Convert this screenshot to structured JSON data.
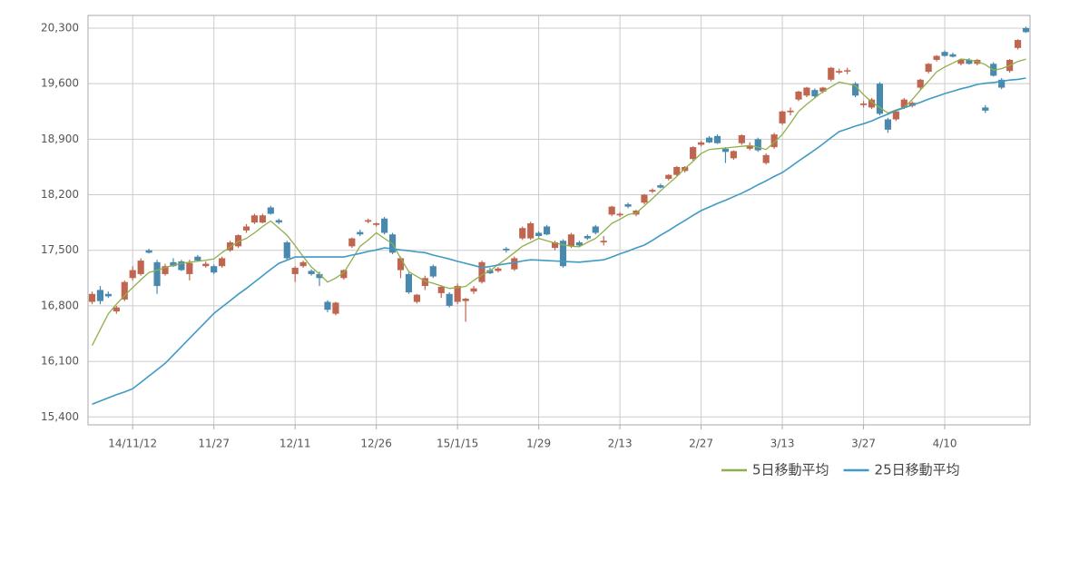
{
  "chart_data": {
    "type": "candlestick",
    "categories": [
      null,
      null,
      null,
      null,
      null,
      "14/11/12",
      null,
      null,
      null,
      null,
      null,
      null,
      null,
      null,
      null,
      "11/27",
      null,
      null,
      null,
      null,
      null,
      null,
      null,
      null,
      null,
      "12/11",
      null,
      null,
      null,
      null,
      null,
      null,
      null,
      null,
      null,
      "12/26",
      null,
      null,
      null,
      null,
      null,
      null,
      null,
      null,
      null,
      "15/1/15",
      null,
      null,
      null,
      null,
      null,
      null,
      null,
      null,
      null,
      "1/29",
      null,
      null,
      null,
      null,
      null,
      null,
      null,
      null,
      null,
      "2/13",
      null,
      null,
      null,
      null,
      null,
      null,
      null,
      null,
      null,
      "2/27",
      null,
      null,
      null,
      null,
      null,
      null,
      null,
      null,
      null,
      "3/13",
      null,
      null,
      null,
      null,
      null,
      null,
      null,
      null,
      null,
      "3/27",
      null,
      null,
      null,
      null,
      null,
      null,
      null,
      null,
      null,
      "4/10",
      null,
      null,
      null,
      null,
      null,
      null,
      null,
      null,
      null,
      null
    ],
    "ohlc": [
      [
        16850,
        16980,
        16820,
        16950
      ],
      [
        17000,
        17050,
        16820,
        16860
      ],
      [
        16950,
        16980,
        16900,
        16920
      ],
      [
        16730,
        16800,
        16700,
        16780
      ],
      [
        16880,
        17120,
        16860,
        17100
      ],
      [
        17150,
        17300,
        17120,
        17250
      ],
      [
        17200,
        17400,
        17180,
        17370
      ],
      [
        17500,
        17520,
        17460,
        17470
      ],
      [
        17350,
        17380,
        16950,
        17050
      ],
      [
        17200,
        17330,
        17180,
        17300
      ],
      [
        17350,
        17400,
        17290,
        17300
      ],
      [
        17360,
        17380,
        17240,
        17250
      ],
      [
        17200,
        17380,
        17120,
        17340
      ],
      [
        17420,
        17440,
        17360,
        17370
      ],
      [
        17300,
        17360,
        17280,
        17330
      ],
      [
        17300,
        17320,
        17200,
        17220
      ],
      [
        17300,
        17420,
        17280,
        17400
      ],
      [
        17500,
        17620,
        17480,
        17600
      ],
      [
        17550,
        17700,
        17530,
        17690
      ],
      [
        17750,
        17830,
        17720,
        17800
      ],
      [
        17850,
        17960,
        17830,
        17940
      ],
      [
        17850,
        17960,
        17840,
        17940
      ],
      [
        18040,
        18060,
        17950,
        17960
      ],
      [
        17880,
        17900,
        17830,
        17850
      ],
      [
        17600,
        17620,
        17380,
        17400
      ],
      [
        17200,
        17300,
        17100,
        17280
      ],
      [
        17300,
        17370,
        17280,
        17350
      ],
      [
        17240,
        17260,
        17180,
        17200
      ],
      [
        17200,
        17230,
        17050,
        17150
      ],
      [
        16850,
        16870,
        16720,
        16750
      ],
      [
        16700,
        16850,
        16680,
        16840
      ],
      [
        17150,
        17260,
        17130,
        17250
      ],
      [
        17550,
        17660,
        17530,
        17650
      ],
      [
        17730,
        17760,
        17680,
        17700
      ],
      [
        17860,
        17900,
        17840,
        17880
      ],
      [
        17820,
        17850,
        17800,
        17840
      ],
      [
        17900,
        17920,
        17700,
        17720
      ],
      [
        17700,
        17720,
        17450,
        17470
      ],
      [
        17250,
        17420,
        17150,
        17400
      ],
      [
        17200,
        17220,
        16950,
        16970
      ],
      [
        16850,
        16950,
        16830,
        16940
      ],
      [
        17050,
        17180,
        17000,
        17150
      ],
      [
        17300,
        17320,
        17150,
        17170
      ],
      [
        16960,
        17060,
        16900,
        17040
      ],
      [
        16950,
        16970,
        16780,
        16800
      ],
      [
        16850,
        17080,
        16820,
        17050
      ],
      [
        16860,
        16900,
        16600,
        16890
      ],
      [
        16980,
        17050,
        16950,
        17020
      ],
      [
        17100,
        17370,
        17080,
        17350
      ],
      [
        17250,
        17280,
        17200,
        17210
      ],
      [
        17240,
        17290,
        17220,
        17270
      ],
      [
        17520,
        17540,
        17470,
        17500
      ],
      [
        17260,
        17420,
        17240,
        17400
      ],
      [
        17650,
        17800,
        17630,
        17780
      ],
      [
        17650,
        17860,
        17630,
        17840
      ],
      [
        17720,
        17740,
        17660,
        17680
      ],
      [
        17800,
        17820,
        17690,
        17700
      ],
      [
        17530,
        17620,
        17500,
        17600
      ],
      [
        17620,
        17640,
        17280,
        17300
      ],
      [
        17550,
        17720,
        17530,
        17700
      ],
      [
        17600,
        17620,
        17540,
        17560
      ],
      [
        17680,
        17700,
        17630,
        17650
      ],
      [
        17800,
        17820,
        17700,
        17720
      ],
      [
        17600,
        17680,
        17560,
        17620
      ],
      [
        17950,
        18060,
        17930,
        18050
      ],
      [
        17940,
        17980,
        17920,
        17960
      ],
      [
        18080,
        18100,
        18030,
        18050
      ],
      [
        17950,
        18010,
        17930,
        18000
      ],
      [
        18100,
        18210,
        18080,
        18200
      ],
      [
        18240,
        18280,
        18220,
        18260
      ],
      [
        18320,
        18340,
        18280,
        18290
      ],
      [
        18400,
        18460,
        18380,
        18450
      ],
      [
        18450,
        18560,
        18430,
        18550
      ],
      [
        18500,
        18560,
        18480,
        18550
      ],
      [
        18650,
        18810,
        18630,
        18800
      ],
      [
        18830,
        18880,
        18810,
        18860
      ],
      [
        18920,
        18940,
        18850,
        18860
      ],
      [
        18940,
        18960,
        18840,
        18850
      ],
      [
        18780,
        18800,
        18600,
        18740
      ],
      [
        18660,
        18760,
        18640,
        18750
      ],
      [
        18850,
        18960,
        18830,
        18950
      ],
      [
        18780,
        18860,
        18760,
        18820
      ],
      [
        18900,
        18920,
        18740,
        18760
      ],
      [
        18600,
        18720,
        18580,
        18700
      ],
      [
        18800,
        18980,
        18780,
        18960
      ],
      [
        19100,
        19260,
        19080,
        19250
      ],
      [
        19240,
        19300,
        19200,
        19260
      ],
      [
        19400,
        19510,
        19380,
        19500
      ],
      [
        19450,
        19560,
        19430,
        19550
      ],
      [
        19520,
        19540,
        19420,
        19440
      ],
      [
        19500,
        19560,
        19480,
        19550
      ],
      [
        19650,
        19810,
        19630,
        19800
      ],
      [
        19740,
        19790,
        19720,
        19760
      ],
      [
        19760,
        19800,
        19720,
        19770
      ],
      [
        19600,
        19620,
        19430,
        19450
      ],
      [
        19330,
        19380,
        19300,
        19350
      ],
      [
        19300,
        19420,
        19280,
        19400
      ],
      [
        19600,
        19620,
        19200,
        19220
      ],
      [
        19150,
        19170,
        18980,
        19020
      ],
      [
        19150,
        19270,
        19130,
        19250
      ],
      [
        19300,
        19420,
        19280,
        19400
      ],
      [
        19320,
        19380,
        19300,
        19360
      ],
      [
        19550,
        19660,
        19530,
        19650
      ],
      [
        19750,
        19860,
        19730,
        19850
      ],
      [
        19900,
        19960,
        19880,
        19950
      ],
      [
        20000,
        20020,
        19940,
        19950
      ],
      [
        19970,
        19990,
        19930,
        19940
      ],
      [
        19850,
        19910,
        19830,
        19900
      ],
      [
        19900,
        19920,
        19840,
        19850
      ],
      [
        19850,
        19910,
        19830,
        19900
      ],
      [
        19300,
        19330,
        19230,
        19260
      ],
      [
        19850,
        19870,
        19690,
        19700
      ],
      [
        19650,
        19670,
        19530,
        19550
      ],
      [
        19760,
        19910,
        19740,
        19900
      ],
      [
        20050,
        20160,
        20030,
        20150
      ],
      [
        20300,
        20320,
        20240,
        20250
      ]
    ],
    "up_color": "#c0654f",
    "down_color": "#4a89ae",
    "series": [
      {
        "name": "5日移動平均",
        "color": "#8db04a",
        "values": [
          16300,
          16500,
          16700,
          16820,
          16930,
          17030,
          17130,
          17220,
          17250,
          17280,
          17310,
          17335,
          17350,
          17360,
          17375,
          17390,
          17470,
          17540,
          17610,
          17650,
          17720,
          17800,
          17870,
          17780,
          17690,
          17560,
          17420,
          17290,
          17200,
          17100,
          17150,
          17220,
          17380,
          17550,
          17630,
          17720,
          17650,
          17580,
          17400,
          17230,
          17170,
          17110,
          17085,
          17050,
          17020,
          17030,
          17045,
          17120,
          17190,
          17240,
          17320,
          17390,
          17470,
          17550,
          17600,
          17650,
          17620,
          17590,
          17570,
          17550,
          17545,
          17600,
          17650,
          17740,
          17840,
          17890,
          17950,
          17970,
          18060,
          18150,
          18250,
          18340,
          18430,
          18530,
          18620,
          18720,
          18770,
          18780,
          18790,
          18800,
          18810,
          18820,
          18800,
          18770,
          18860,
          18960,
          19100,
          19250,
          19340,
          19420,
          19500,
          19560,
          19620,
          19600,
          19575,
          19460,
          19370,
          19300,
          19230,
          19270,
          19300,
          19400,
          19520,
          19630,
          19750,
          19810,
          19860,
          19910,
          19900,
          19880,
          19840,
          19770,
          19790,
          19830,
          19880,
          19910
        ]
      },
      {
        "name": "25日移動平均",
        "color": "#3f9ac4",
        "values": [
          15560,
          15600,
          15640,
          15680,
          15715,
          15755,
          15835,
          15915,
          15995,
          16075,
          16180,
          16285,
          16390,
          16495,
          16600,
          16705,
          16785,
          16865,
          16945,
          17020,
          17100,
          17180,
          17260,
          17335,
          17375,
          17415,
          17415,
          17415,
          17415,
          17415,
          17415,
          17415,
          17440,
          17460,
          17485,
          17505,
          17530,
          17520,
          17505,
          17495,
          17480,
          17470,
          17440,
          17415,
          17390,
          17360,
          17335,
          17310,
          17280,
          17295,
          17315,
          17330,
          17345,
          17365,
          17380,
          17375,
          17370,
          17365,
          17360,
          17355,
          17350,
          17360,
          17370,
          17380,
          17415,
          17455,
          17490,
          17530,
          17565,
          17625,
          17690,
          17750,
          17815,
          17875,
          17940,
          18000,
          18045,
          18090,
          18130,
          18175,
          18220,
          18270,
          18325,
          18375,
          18430,
          18480,
          18550,
          18625,
          18695,
          18765,
          18840,
          18920,
          18995,
          19030,
          19065,
          19095,
          19130,
          19175,
          19215,
          19260,
          19295,
          19330,
          19365,
          19405,
          19440,
          19475,
          19505,
          19535,
          19560,
          19590,
          19605,
          19615,
          19630,
          19645,
          19655,
          19670
        ]
      }
    ],
    "ylim": [
      15300,
      20460
    ],
    "yticks": [
      {
        "value": 15400,
        "label": "15,400"
      },
      {
        "value": 16100,
        "label": "16,100"
      },
      {
        "value": 16800,
        "label": "16,800"
      },
      {
        "value": 17500,
        "label": "17,500"
      },
      {
        "value": 18200,
        "label": "18,200"
      },
      {
        "value": 18900,
        "label": "18,900"
      },
      {
        "value": 19600,
        "label": "19,600"
      },
      {
        "value": 20300,
        "label": "20,300"
      }
    ],
    "grid": true,
    "legend": "bottom-right"
  }
}
